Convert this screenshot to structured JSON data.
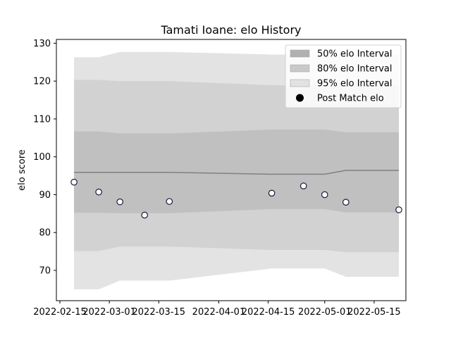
{
  "chart_data": {
    "type": "line",
    "title": "Tamati Ioane: elo History",
    "xlabel": "",
    "ylabel": "elo score",
    "x_ticks": [
      "2022-02-15",
      "2022-03-01",
      "2022-03-15",
      "2022-04-01",
      "2022-04-15",
      "2022-05-01",
      "2022-05-15"
    ],
    "y_ticks": [
      70,
      80,
      90,
      100,
      110,
      120,
      130
    ],
    "xlim": [
      "2022-02-14",
      "2022-05-24"
    ],
    "ylim": [
      62,
      131
    ],
    "grid": false,
    "legend_position": "top-right",
    "legend": [
      {
        "label": "50% elo Interval",
        "kind": "band",
        "color": "#b0b0b0"
      },
      {
        "label": "80% elo Interval",
        "kind": "band",
        "color": "#c9c9c9"
      },
      {
        "label": "95% elo Interval",
        "kind": "band",
        "color": "#e2e2e2"
      },
      {
        "label": "Post Match elo",
        "kind": "marker",
        "color": "#000000"
      }
    ],
    "colors": {
      "band95": "#e3e3e3",
      "band80": "#d2d2d2",
      "band50": "#c0c0c0",
      "median_line": "#808080",
      "marker_edge": "#1a1a3a",
      "marker_fill": "#ffffff"
    },
    "bands": {
      "x": [
        "2022-02-19",
        "2022-02-26",
        "2022-03-04",
        "2022-03-11",
        "2022-03-18",
        "2022-04-16",
        "2022-04-25",
        "2022-05-01",
        "2022-05-07",
        "2022-05-22"
      ],
      "p97_5": [
        126.3,
        126.3,
        127.7,
        127.7,
        127.7,
        127.0,
        127.0,
        127.0,
        127.0,
        127.0
      ],
      "p90": [
        120.3,
        120.3,
        120.0,
        120.0,
        120.0,
        118.9,
        118.9,
        118.9,
        118.9,
        118.9
      ],
      "p75": [
        106.7,
        106.7,
        106.2,
        106.2,
        106.2,
        107.2,
        107.2,
        107.2,
        106.5,
        106.5
      ],
      "median": [
        95.9,
        95.9,
        95.9,
        95.9,
        95.9,
        95.4,
        95.4,
        95.4,
        96.4,
        96.4
      ],
      "p25": [
        85.2,
        85.2,
        85.1,
        85.1,
        85.1,
        86.2,
        86.2,
        86.2,
        85.3,
        85.3
      ],
      "p10": [
        75.1,
        75.1,
        76.3,
        76.3,
        76.3,
        75.4,
        75.4,
        75.4,
        74.8,
        74.8
      ],
      "p2_5": [
        65.0,
        65.0,
        67.3,
        67.3,
        67.3,
        70.5,
        70.5,
        70.5,
        68.3,
        68.3
      ]
    },
    "series": [
      {
        "name": "Post Match elo",
        "x": [
          "2022-02-19",
          "2022-02-26",
          "2022-03-04",
          "2022-03-11",
          "2022-03-18",
          "2022-04-16",
          "2022-04-25",
          "2022-05-01",
          "2022-05-07",
          "2022-05-22"
        ],
        "values": [
          93.3,
          90.7,
          88.1,
          84.6,
          88.2,
          90.4,
          92.3,
          90.0,
          88.0,
          86.0
        ]
      }
    ]
  }
}
